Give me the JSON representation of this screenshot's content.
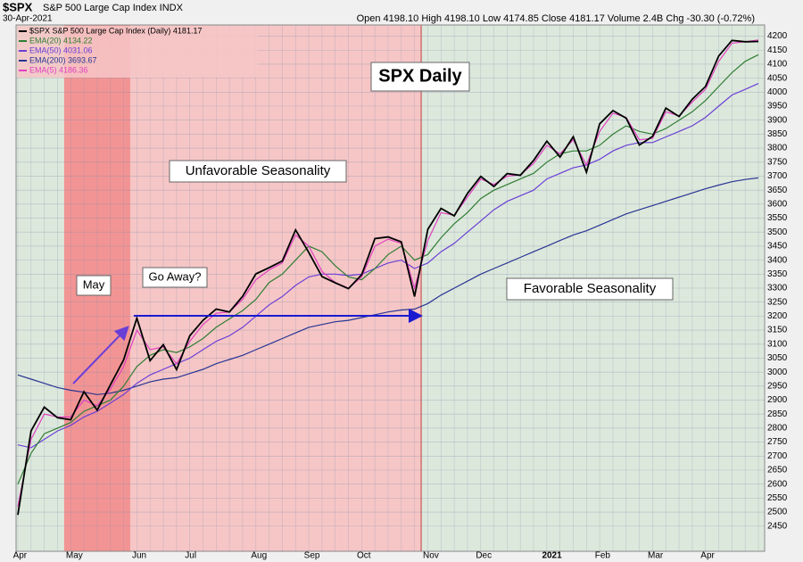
{
  "chart_data": {
    "type": "line",
    "symbol": "$SPX",
    "index_name": "S&P 500 Large Cap Index INDX",
    "date": "30-Apr-2021",
    "quote": "Open 4198.10 High 4198.10 Low 4174.85 Close 4181.17 Volume 2.4B Chg -30.30 (-0.72%)",
    "title": "SPX Daily",
    "annotations": [
      "Unfavorable Seasonality",
      "Favorable Seasonality",
      "May",
      "Go Away?"
    ],
    "categories": [
      "Apr",
      null,
      null,
      null,
      "May",
      null,
      null,
      null,
      null,
      "Jun",
      null,
      null,
      null,
      "Jul",
      null,
      null,
      null,
      null,
      "Aug",
      null,
      null,
      null,
      "Sep",
      null,
      null,
      null,
      "Oct",
      null,
      null,
      null,
      null,
      "Nov",
      null,
      null,
      null,
      "Dec",
      null,
      null,
      null,
      null,
      "2021",
      null,
      null,
      null,
      "Feb",
      null,
      null,
      null,
      "Mar",
      null,
      null,
      null,
      "Apr",
      null,
      null,
      null,
      null
    ],
    "series": [
      {
        "name": "$SPX S&P 500 Large Cap Index (Daily) 4181.17",
        "color": "#000000",
        "values": [
          2490,
          2790,
          2875,
          2837,
          2830,
          2930,
          2864,
          2955,
          3044,
          3193,
          3041,
          3098,
          3009,
          3130,
          3185,
          3225,
          3215,
          3271,
          3351,
          3373,
          3397,
          3508,
          3427,
          3341,
          3319,
          3298,
          3348,
          3477,
          3483,
          3465,
          3270,
          3510,
          3585,
          3558,
          3638,
          3699,
          3663,
          3709,
          3703,
          3756,
          3825,
          3768,
          3841,
          3714,
          3887,
          3934,
          3907,
          3811,
          3842,
          3943,
          3913,
          3975,
          4020,
          4129,
          4185,
          4180,
          4181
        ]
      },
      {
        "name": "EMA(20) 4134.22",
        "color": "#2e7d32",
        "values": [
          2600,
          2710,
          2780,
          2800,
          2820,
          2860,
          2880,
          2900,
          2950,
          3020,
          3060,
          3080,
          3070,
          3090,
          3120,
          3160,
          3190,
          3220,
          3260,
          3320,
          3350,
          3400,
          3450,
          3430,
          3380,
          3340,
          3330,
          3370,
          3420,
          3450,
          3400,
          3420,
          3480,
          3530,
          3570,
          3620,
          3650,
          3670,
          3690,
          3710,
          3750,
          3780,
          3790,
          3790,
          3810,
          3850,
          3880,
          3860,
          3850,
          3870,
          3900,
          3930,
          3970,
          4020,
          4070,
          4110,
          4134
        ]
      },
      {
        "name": "EMA(50) 4031.06",
        "color": "#6a3fd6",
        "values": [
          2740,
          2730,
          2760,
          2790,
          2810,
          2840,
          2860,
          2890,
          2920,
          2960,
          2990,
          3010,
          3030,
          3050,
          3080,
          3110,
          3130,
          3160,
          3200,
          3240,
          3270,
          3310,
          3340,
          3350,
          3350,
          3345,
          3350,
          3370,
          3390,
          3400,
          3370,
          3390,
          3430,
          3460,
          3500,
          3540,
          3580,
          3610,
          3630,
          3650,
          3690,
          3710,
          3730,
          3740,
          3760,
          3790,
          3810,
          3820,
          3820,
          3840,
          3860,
          3880,
          3910,
          3950,
          3990,
          4010,
          4031
        ]
      },
      {
        "name": "EMA(200) 3693.67",
        "color": "#283593",
        "values": [
          2990,
          2975,
          2960,
          2945,
          2935,
          2928,
          2920,
          2925,
          2935,
          2950,
          2965,
          2975,
          2980,
          2995,
          3010,
          3030,
          3045,
          3060,
          3080,
          3100,
          3120,
          3140,
          3160,
          3170,
          3180,
          3185,
          3195,
          3205,
          3215,
          3222,
          3225,
          3245,
          3275,
          3300,
          3325,
          3350,
          3370,
          3390,
          3410,
          3430,
          3450,
          3470,
          3490,
          3505,
          3525,
          3545,
          3565,
          3580,
          3595,
          3610,
          3625,
          3640,
          3655,
          3668,
          3680,
          3688,
          3694
        ]
      },
      {
        "name": "EMA(5) 4186.36",
        "color": "#e040c0",
        "values": [
          2520,
          2760,
          2850,
          2840,
          2840,
          2900,
          2880,
          2940,
          3020,
          3150,
          3080,
          3090,
          3030,
          3110,
          3170,
          3210,
          3215,
          3260,
          3330,
          3365,
          3390,
          3490,
          3450,
          3360,
          3320,
          3300,
          3340,
          3450,
          3475,
          3460,
          3300,
          3470,
          3570,
          3560,
          3625,
          3690,
          3670,
          3700,
          3705,
          3745,
          3810,
          3780,
          3830,
          3740,
          3860,
          3925,
          3910,
          3830,
          3835,
          3930,
          3915,
          3965,
          4010,
          4110,
          4175,
          4180,
          4186
        ]
      }
    ],
    "ylim": [
      2360,
      4240
    ],
    "yticks": [
      2450,
      2500,
      2550,
      2600,
      2650,
      2700,
      2750,
      2800,
      2850,
      2900,
      2950,
      3000,
      3050,
      3100,
      3150,
      3200,
      3250,
      3300,
      3350,
      3400,
      3450,
      3500,
      3550,
      3600,
      3650,
      3700,
      3750,
      3800,
      3850,
      3900,
      3950,
      4000,
      4050,
      4100,
      4150,
      4200
    ],
    "grid": true
  }
}
